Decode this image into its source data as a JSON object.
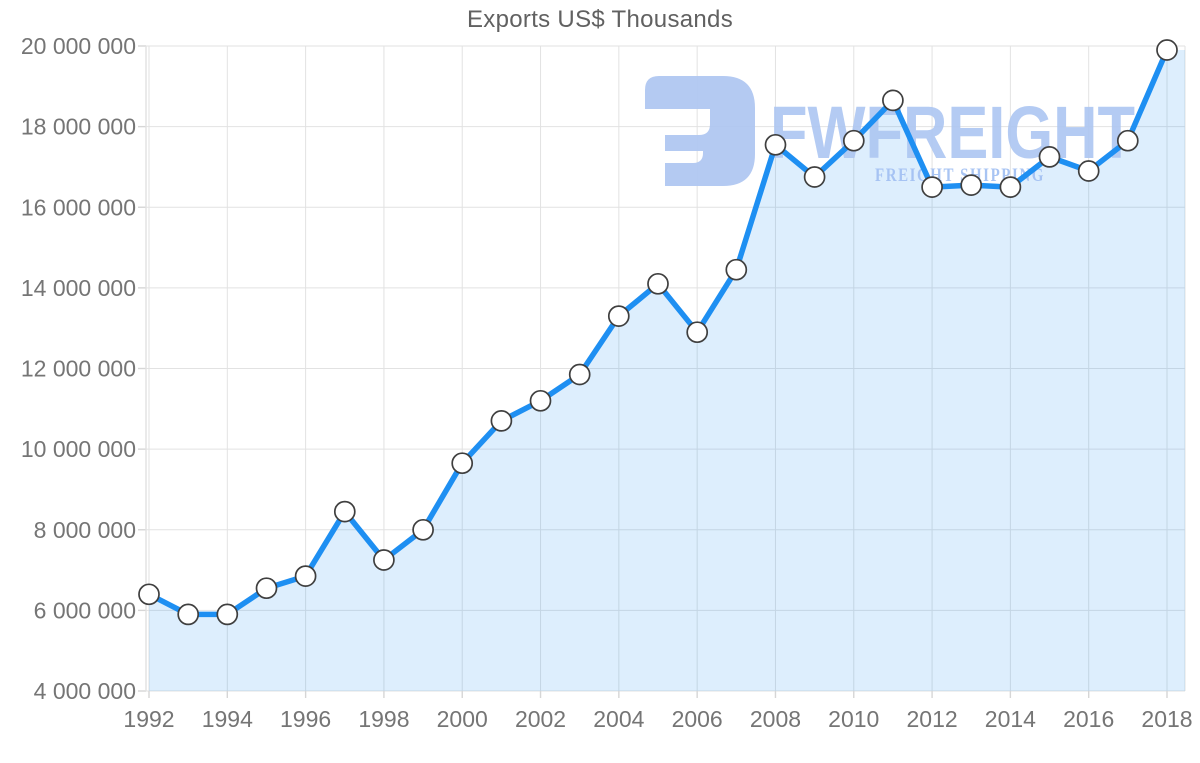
{
  "title": "Exports US$ Thousands",
  "watermark": {
    "brand": "FWFREIGHT",
    "tagline": "FREIGHT SHIPPING",
    "logo_color": "#aec6f1",
    "brand_color": "#aec7f2",
    "tagline_color": "#a4c1f3"
  },
  "colors": {
    "line": "#1e8ff2",
    "area": "rgba(30,143,242,0.15)",
    "marker_fill": "#ffffff",
    "marker_stroke": "#3f3f3f",
    "grid": "#e2e2e2",
    "tick": "#d6d6d6",
    "axis_text": "#757575",
    "title_text": "#616161"
  },
  "chart_data": {
    "type": "area",
    "title": "Exports US$ Thousands",
    "x": [
      1992,
      1993,
      1994,
      1995,
      1996,
      1997,
      1998,
      1999,
      2000,
      2001,
      2002,
      2003,
      2004,
      2005,
      2006,
      2007,
      2008,
      2009,
      2010,
      2011,
      2012,
      2013,
      2014,
      2015,
      2016,
      2017,
      2018
    ],
    "values": [
      6400000,
      5900000,
      5900000,
      6550000,
      6850000,
      8450000,
      7250000,
      8000000,
      9650000,
      10700000,
      11200000,
      11850000,
      13300000,
      14100000,
      12900000,
      14450000,
      17550000,
      16750000,
      17650000,
      18650000,
      16500000,
      16550000,
      16500000,
      17250000,
      16900000,
      17650000,
      19900000
    ],
    "xlabel": "",
    "ylabel": "",
    "ylim": [
      4000000,
      20000000
    ],
    "y_tick_step": 2000000,
    "x_tick_step": 2,
    "grid": true,
    "legend": "none",
    "marker": "circle",
    "series_name": "Exports US$ Thousands"
  }
}
